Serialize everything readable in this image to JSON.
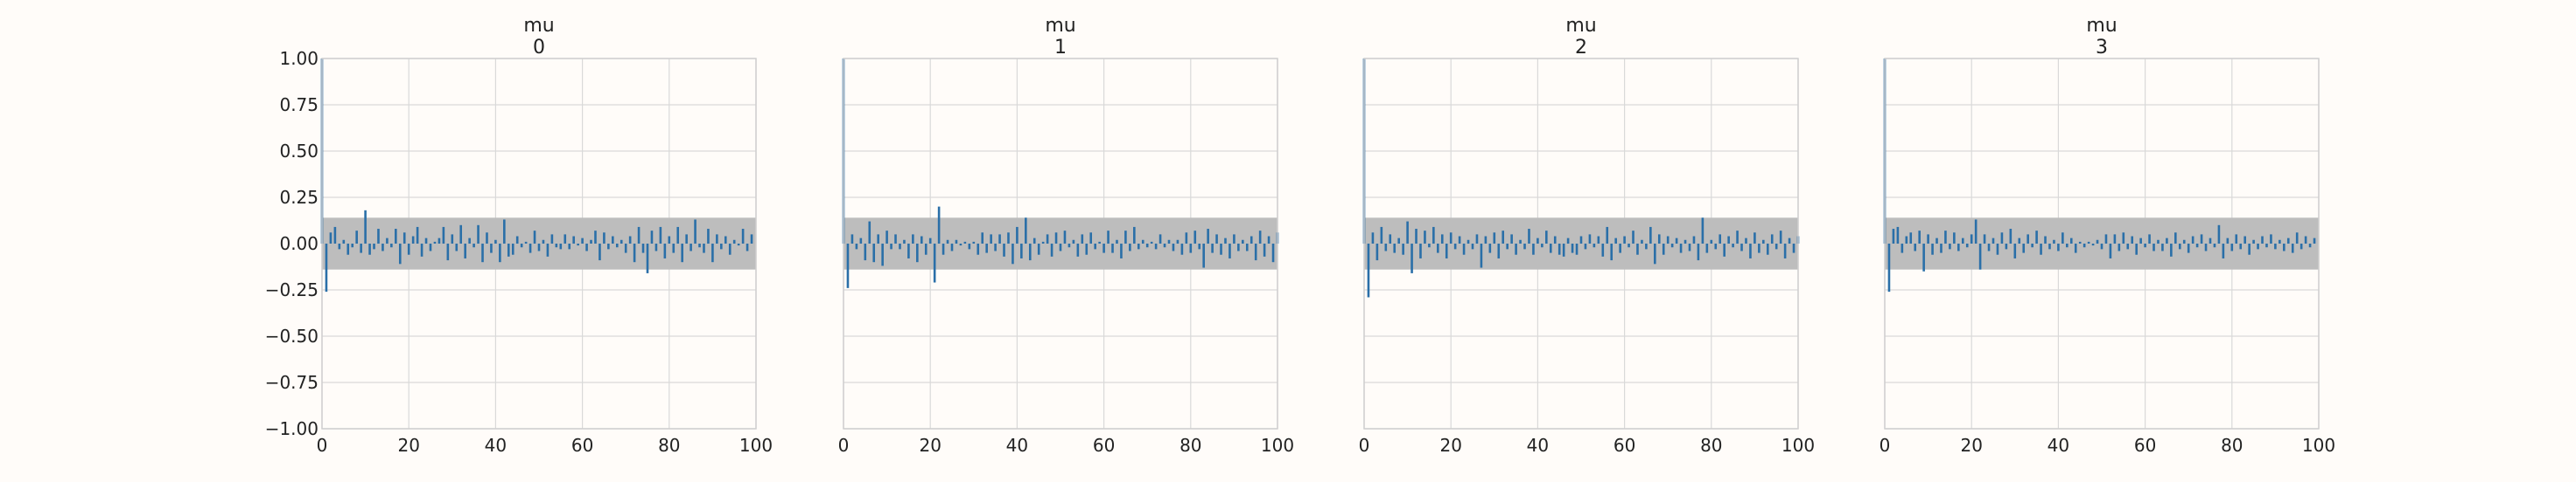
{
  "chart_data": [
    {
      "type": "bar",
      "title": "mu",
      "subtitle": "0",
      "xlim": [
        0,
        100
      ],
      "ylim": [
        -1.0,
        1.0
      ],
      "xticks": [
        0,
        20,
        40,
        60,
        80,
        100
      ],
      "yticks": [
        1.0,
        0.75,
        0.5,
        0.25,
        0.0,
        -0.25,
        -0.5,
        -0.75,
        -1.0
      ],
      "ytick_labels": [
        "1.00",
        "0.75",
        "0.50",
        "0.25",
        "0.00",
        "−0.25",
        "−0.50",
        "−0.75",
        "−1.00"
      ],
      "band": [
        -0.14,
        0.14
      ],
      "grid": true,
      "values": [
        1.0,
        -0.26,
        0.06,
        0.09,
        -0.03,
        0.02,
        -0.06,
        -0.02,
        0.07,
        -0.05,
        0.18,
        -0.06,
        -0.03,
        0.08,
        -0.04,
        0.03,
        -0.02,
        0.08,
        -0.11,
        0.06,
        -0.06,
        0.04,
        0.09,
        -0.07,
        0.03,
        -0.04,
        0.01,
        0.03,
        0.09,
        -0.09,
        0.05,
        -0.04,
        0.1,
        -0.08,
        0.03,
        -0.02,
        0.1,
        -0.1,
        0.06,
        -0.05,
        0.02,
        -0.1,
        0.13,
        -0.07,
        -0.06,
        0.04,
        -0.02,
        0.01,
        -0.05,
        0.07,
        -0.04,
        0.02,
        -0.07,
        0.05,
        -0.02,
        -0.03,
        0.05,
        -0.03,
        0.04,
        -0.01,
        0.03,
        -0.04,
        0.02,
        0.07,
        -0.09,
        0.06,
        -0.03,
        0.04,
        -0.02,
        0.02,
        -0.05,
        0.04,
        -0.1,
        0.09,
        -0.05,
        -0.16,
        0.07,
        -0.04,
        0.09,
        -0.08,
        0.04,
        -0.05,
        0.09,
        -0.1,
        0.05,
        -0.04,
        0.13,
        -0.02,
        -0.05,
        0.08,
        -0.1,
        0.05,
        -0.03,
        0.04,
        -0.06,
        0.02,
        -0.01,
        0.08,
        -0.04,
        0.05
      ]
    },
    {
      "type": "bar",
      "title": "mu",
      "subtitle": "1",
      "xlim": [
        0,
        100
      ],
      "ylim": [
        -1.0,
        1.0
      ],
      "xticks": [
        0,
        20,
        40,
        60,
        80,
        100
      ],
      "band": [
        -0.14,
        0.14
      ],
      "grid": true,
      "values": [
        1.0,
        -0.24,
        0.05,
        -0.03,
        0.03,
        -0.09,
        0.12,
        -0.1,
        0.05,
        -0.12,
        0.07,
        -0.03,
        0.05,
        -0.03,
        0.02,
        -0.08,
        0.05,
        -0.1,
        0.04,
        -0.06,
        0.03,
        -0.21,
        0.2,
        -0.06,
        0.02,
        -0.04,
        0.02,
        -0.01,
        0.01,
        -0.03,
        0.01,
        -0.06,
        0.06,
        -0.05,
        0.05,
        -0.04,
        0.05,
        -0.07,
        0.06,
        -0.11,
        0.09,
        -0.08,
        0.14,
        -0.09,
        0.03,
        -0.06,
        0.01,
        0.05,
        -0.07,
        0.06,
        -0.04,
        0.07,
        -0.02,
        0.02,
        -0.07,
        0.05,
        -0.06,
        0.06,
        -0.03,
        0.01,
        -0.05,
        0.07,
        -0.05,
        0.02,
        -0.08,
        0.07,
        -0.04,
        0.09,
        -0.03,
        0.02,
        -0.02,
        0.01,
        -0.03,
        0.05,
        -0.02,
        0.02,
        -0.04,
        0.02,
        -0.06,
        0.06,
        -0.05,
        0.07,
        -0.03,
        -0.13,
        0.08,
        -0.05,
        0.05,
        -0.06,
        0.03,
        -0.08,
        0.05,
        -0.04,
        0.02,
        -0.04,
        0.04,
        -0.09,
        0.07,
        -0.07,
        0.04,
        -0.1,
        0.06
      ]
    },
    {
      "type": "bar",
      "title": "mu",
      "subtitle": "2",
      "xlim": [
        0,
        100
      ],
      "ylim": [
        -1.0,
        1.0
      ],
      "xticks": [
        0,
        20,
        40,
        60,
        80,
        100
      ],
      "band": [
        -0.14,
        0.14
      ],
      "grid": true,
      "values": [
        1.0,
        -0.29,
        0.06,
        -0.09,
        0.09,
        -0.04,
        0.05,
        -0.05,
        0.03,
        -0.06,
        0.12,
        -0.16,
        0.08,
        -0.08,
        0.07,
        -0.02,
        0.09,
        -0.05,
        0.05,
        -0.08,
        0.06,
        -0.03,
        0.04,
        -0.06,
        0.02,
        -0.03,
        0.05,
        -0.13,
        0.04,
        -0.05,
        0.06,
        -0.08,
        0.07,
        -0.03,
        0.05,
        -0.06,
        0.02,
        -0.03,
        0.08,
        -0.06,
        0.03,
        -0.02,
        0.07,
        -0.05,
        0.04,
        -0.06,
        -0.07,
        0.03,
        -0.05,
        -0.06,
        0.04,
        -0.03,
        0.05,
        -0.02,
        0.04,
        -0.07,
        0.09,
        -0.09,
        0.03,
        -0.05,
        0.04,
        -0.02,
        0.07,
        -0.06,
        0.02,
        -0.03,
        0.09,
        -0.11,
        0.05,
        -0.06,
        0.04,
        -0.02,
        0.03,
        -0.05,
        0.02,
        -0.04,
        0.04,
        -0.09,
        0.14,
        -0.05,
        0.02,
        -0.03,
        0.05,
        -0.07,
        0.04,
        -0.02,
        0.07,
        -0.04,
        0.03,
        -0.08,
        0.06,
        -0.05,
        0.02,
        -0.06,
        0.05,
        -0.03,
        0.07,
        -0.08,
        0.03,
        -0.05,
        0.04
      ]
    },
    {
      "type": "bar",
      "title": "mu",
      "subtitle": "3",
      "xlim": [
        0,
        100
      ],
      "ylim": [
        -1.0,
        1.0
      ],
      "xticks": [
        0,
        20,
        40,
        60,
        80,
        100
      ],
      "band": [
        -0.14,
        0.14
      ],
      "grid": true,
      "values": [
        1.0,
        -0.26,
        0.08,
        0.09,
        -0.05,
        0.04,
        0.06,
        -0.04,
        0.07,
        -0.15,
        0.05,
        -0.06,
        0.03,
        -0.05,
        0.07,
        -0.03,
        0.06,
        -0.04,
        0.03,
        -0.02,
        0.05,
        0.13,
        -0.14,
        0.05,
        -0.04,
        0.03,
        -0.06,
        0.06,
        -0.03,
        0.08,
        -0.08,
        0.03,
        -0.05,
        0.05,
        -0.02,
        0.07,
        -0.06,
        0.04,
        -0.03,
        0.02,
        -0.04,
        0.06,
        -0.02,
        0.03,
        -0.05,
        0.01,
        -0.02,
        0.01,
        -0.01,
        0.02,
        -0.03,
        0.05,
        -0.08,
        0.05,
        -0.04,
        0.06,
        -0.03,
        0.04,
        -0.06,
        0.03,
        -0.02,
        0.05,
        -0.04,
        0.02,
        -0.04,
        0.03,
        -0.07,
        0.06,
        -0.03,
        0.02,
        -0.05,
        0.04,
        -0.02,
        0.05,
        -0.04,
        0.03,
        -0.02,
        0.1,
        -0.08,
        0.03,
        -0.04,
        0.05,
        -0.03,
        0.04,
        -0.06,
        0.02,
        -0.03,
        0.04,
        -0.02,
        0.05,
        -0.03,
        0.02,
        -0.04,
        0.03,
        -0.05,
        0.06,
        -0.03,
        0.04,
        -0.02,
        0.03
      ]
    }
  ],
  "colors": {
    "background": "#fffcf9",
    "bar": "#2a6fa8",
    "band": "#bdbdbd",
    "grid": "#d9d9d9",
    "axis": "#cfcfcf",
    "text": "#222222"
  }
}
